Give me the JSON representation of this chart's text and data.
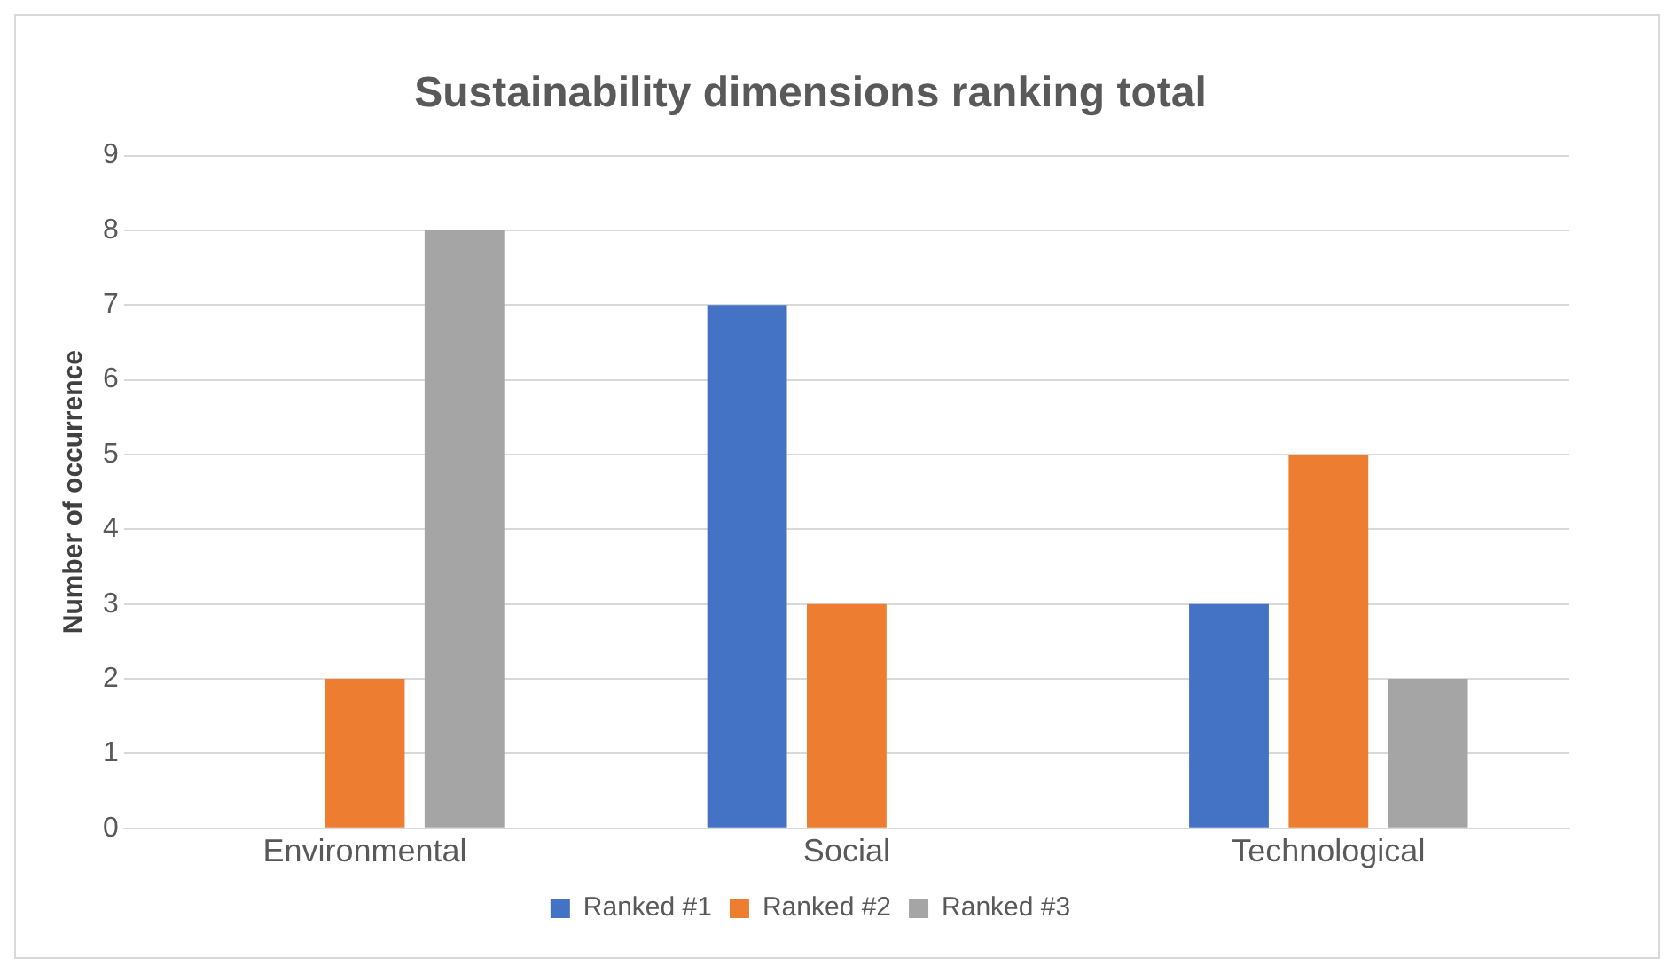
{
  "chart_data": {
    "type": "bar",
    "title": "Sustainability dimensions ranking total",
    "ylabel": "Number of occurrence",
    "categories": [
      "Environmental",
      "Social",
      "Technological"
    ],
    "series": [
      {
        "name": "Ranked #1",
        "color": "#4472c4",
        "values": [
          0,
          7,
          3
        ]
      },
      {
        "name": "Ranked #2",
        "color": "#ed7d31",
        "values": [
          2,
          3,
          5
        ]
      },
      {
        "name": "Ranked #3",
        "color": "#a5a5a5",
        "values": [
          8,
          0,
          2
        ]
      }
    ],
    "ylim": [
      0,
      9
    ],
    "yticks": [
      0,
      1,
      2,
      3,
      4,
      5,
      6,
      7,
      8,
      9
    ],
    "grid": "y",
    "legend": "bottom"
  }
}
